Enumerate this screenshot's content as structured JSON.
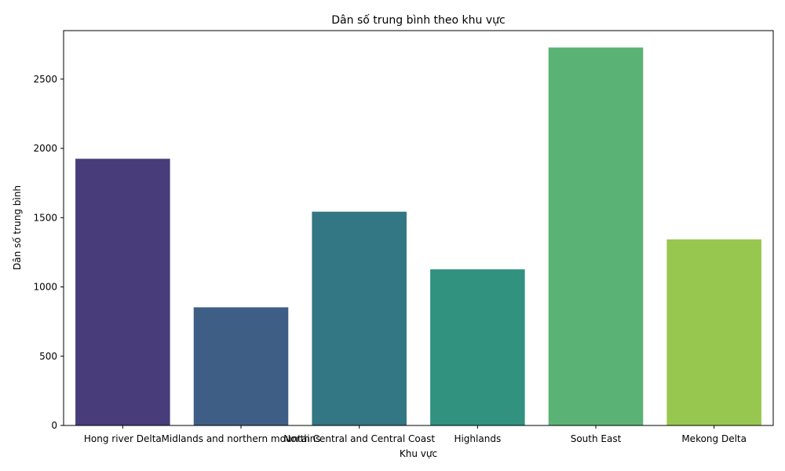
{
  "chart_data": {
    "type": "bar",
    "title": "Dân số trung bình theo khu vực",
    "xlabel": "Khu vực",
    "ylabel": "Dân số trung bình",
    "categories": [
      "Hong river Delta",
      "Midlands and northern mountains",
      "North Central and Central Coast",
      "Highlands",
      "South East",
      "Mekong Delta"
    ],
    "values": [
      1925,
      853,
      1543,
      1127,
      2728,
      1343
    ],
    "colors": [
      "#483d7a",
      "#3f5e85",
      "#337684",
      "#319280",
      "#5ab274",
      "#98c74f"
    ],
    "ylim": [
      0,
      2850
    ],
    "yticks": [
      0,
      500,
      1000,
      1500,
      2000,
      2500
    ],
    "grid": false,
    "legend": "none"
  }
}
